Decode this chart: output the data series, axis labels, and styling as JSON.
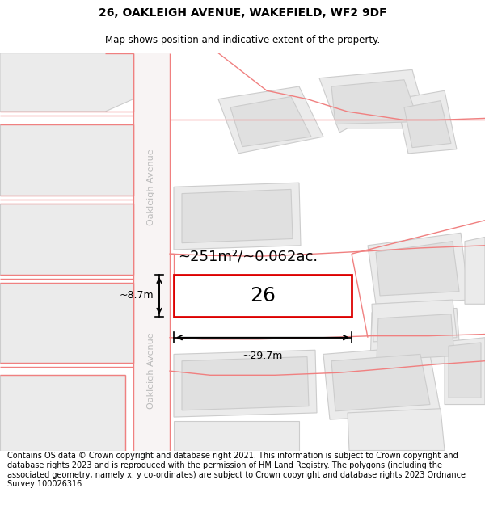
{
  "title": "26, OAKLEIGH AVENUE, WAKEFIELD, WF2 9DF",
  "subtitle": "Map shows position and indicative extent of the property.",
  "footer": "Contains OS data © Crown copyright and database right 2021. This information is subject to Crown copyright and database rights 2023 and is reproduced with the permission of HM Land Registry. The polygons (including the associated geometry, namely x, y co-ordinates) are subject to Crown copyright and database rights 2023 Ordnance Survey 100026316.",
  "background_color": "#ffffff",
  "property_label": "26",
  "area_label": "~251m²/~0.062ac.",
  "width_label": "~29.7m",
  "height_label": "~8.7m",
  "street_label_upper": "Oakleigh Avenue",
  "street_label_lower": "Oakleigh Avenue",
  "road_color": "#f08080",
  "polygon_fill": "#ebebeb",
  "polygon_edge": "#cccccc",
  "property_fill": "#ffffff",
  "property_edge": "#dd0000",
  "dim_color": "#000000",
  "text_color": "#000000",
  "title_fontsize": 10,
  "subtitle_fontsize": 8.5,
  "footer_fontsize": 7.0
}
